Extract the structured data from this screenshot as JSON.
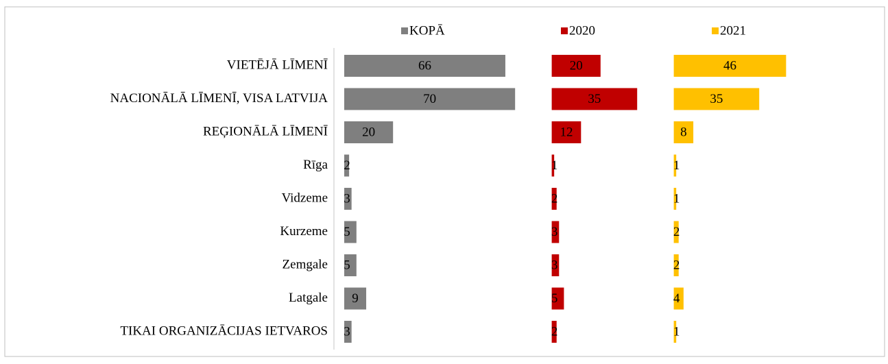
{
  "chart_data": {
    "type": "bar",
    "orientation": "horizontal",
    "categories": [
      "VIETĒJĀ LĪMENĪ",
      "NACIONĀLĀ LĪMENĪ, VISA LATVIJA",
      "REĢIONĀLĀ LĪMENĪ",
      "Rīga",
      "Vidzeme",
      "Kurzeme",
      "Zemgale",
      "Latgale",
      "TIKAI ORGANIZĀCIJAS IETVAROS"
    ],
    "series": [
      {
        "name": "KOPĀ",
        "color": "#7f7f7f",
        "xlim": [
          0,
          85
        ],
        "values": [
          66,
          70,
          20,
          2,
          3,
          5,
          5,
          9,
          3
        ]
      },
      {
        "name": "2020",
        "color": "#c00000",
        "xlim": [
          0,
          50
        ],
        "values": [
          20,
          35,
          12,
          1,
          2,
          3,
          3,
          5,
          2
        ]
      },
      {
        "name": "2021",
        "color": "#ffc000",
        "xlim": [
          0,
          85
        ],
        "values": [
          46,
          35,
          8,
          1,
          1,
          2,
          2,
          4,
          1
        ]
      }
    ],
    "legend": "top"
  }
}
